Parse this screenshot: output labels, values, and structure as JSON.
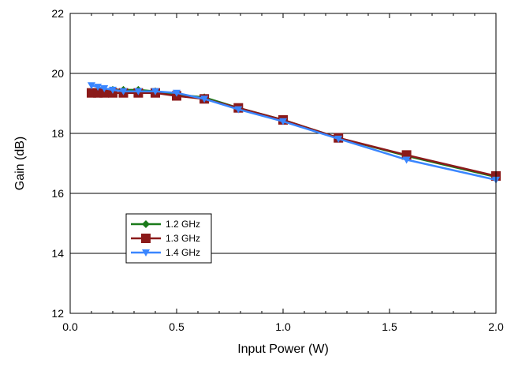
{
  "chart_data": {
    "type": "line",
    "xlabel": "Input Power (W)",
    "ylabel": "Gain (dB)",
    "xlim": [
      0.0,
      2.0
    ],
    "ylim": [
      12,
      22
    ],
    "x_ticks": [
      "0.0",
      "0.5",
      "1.0",
      "1.5",
      "2.0"
    ],
    "y_ticks": [
      "12",
      "14",
      "16",
      "18",
      "20",
      "22"
    ],
    "grid": "horizontal",
    "legend_position": "lower-left",
    "series": [
      {
        "name": "1.2 GHz",
        "color": "#1a7a1a",
        "marker": "diamond",
        "points": [
          [
            0.1,
            19.4
          ],
          [
            0.13,
            19.4
          ],
          [
            0.16,
            19.4
          ],
          [
            0.2,
            19.45
          ],
          [
            0.25,
            19.45
          ],
          [
            0.32,
            19.45
          ],
          [
            0.4,
            19.4
          ],
          [
            0.5,
            19.3
          ],
          [
            0.63,
            19.2
          ],
          [
            0.79,
            18.85
          ],
          [
            1.0,
            18.45
          ],
          [
            1.26,
            17.85
          ],
          [
            1.58,
            17.25
          ],
          [
            2.0,
            16.55
          ]
        ]
      },
      {
        "name": "1.3 GHz",
        "color": "#8b1a1a",
        "marker": "square",
        "points": [
          [
            0.1,
            19.35
          ],
          [
            0.13,
            19.35
          ],
          [
            0.16,
            19.35
          ],
          [
            0.2,
            19.35
          ],
          [
            0.25,
            19.35
          ],
          [
            0.32,
            19.35
          ],
          [
            0.4,
            19.35
          ],
          [
            0.5,
            19.25
          ],
          [
            0.63,
            19.15
          ],
          [
            0.79,
            18.85
          ],
          [
            1.0,
            18.45
          ],
          [
            1.26,
            17.85
          ],
          [
            1.58,
            17.28
          ],
          [
            2.0,
            16.58
          ]
        ]
      },
      {
        "name": "1.4 GHz",
        "color": "#3a86ff",
        "marker": "triangle-down",
        "points": [
          [
            0.1,
            19.6
          ],
          [
            0.13,
            19.55
          ],
          [
            0.16,
            19.5
          ],
          [
            0.2,
            19.45
          ],
          [
            0.25,
            19.4
          ],
          [
            0.32,
            19.4
          ],
          [
            0.4,
            19.4
          ],
          [
            0.5,
            19.35
          ],
          [
            0.63,
            19.15
          ],
          [
            0.79,
            18.8
          ],
          [
            1.0,
            18.4
          ],
          [
            1.26,
            17.82
          ],
          [
            1.58,
            17.12
          ],
          [
            2.0,
            16.45
          ]
        ]
      }
    ]
  }
}
